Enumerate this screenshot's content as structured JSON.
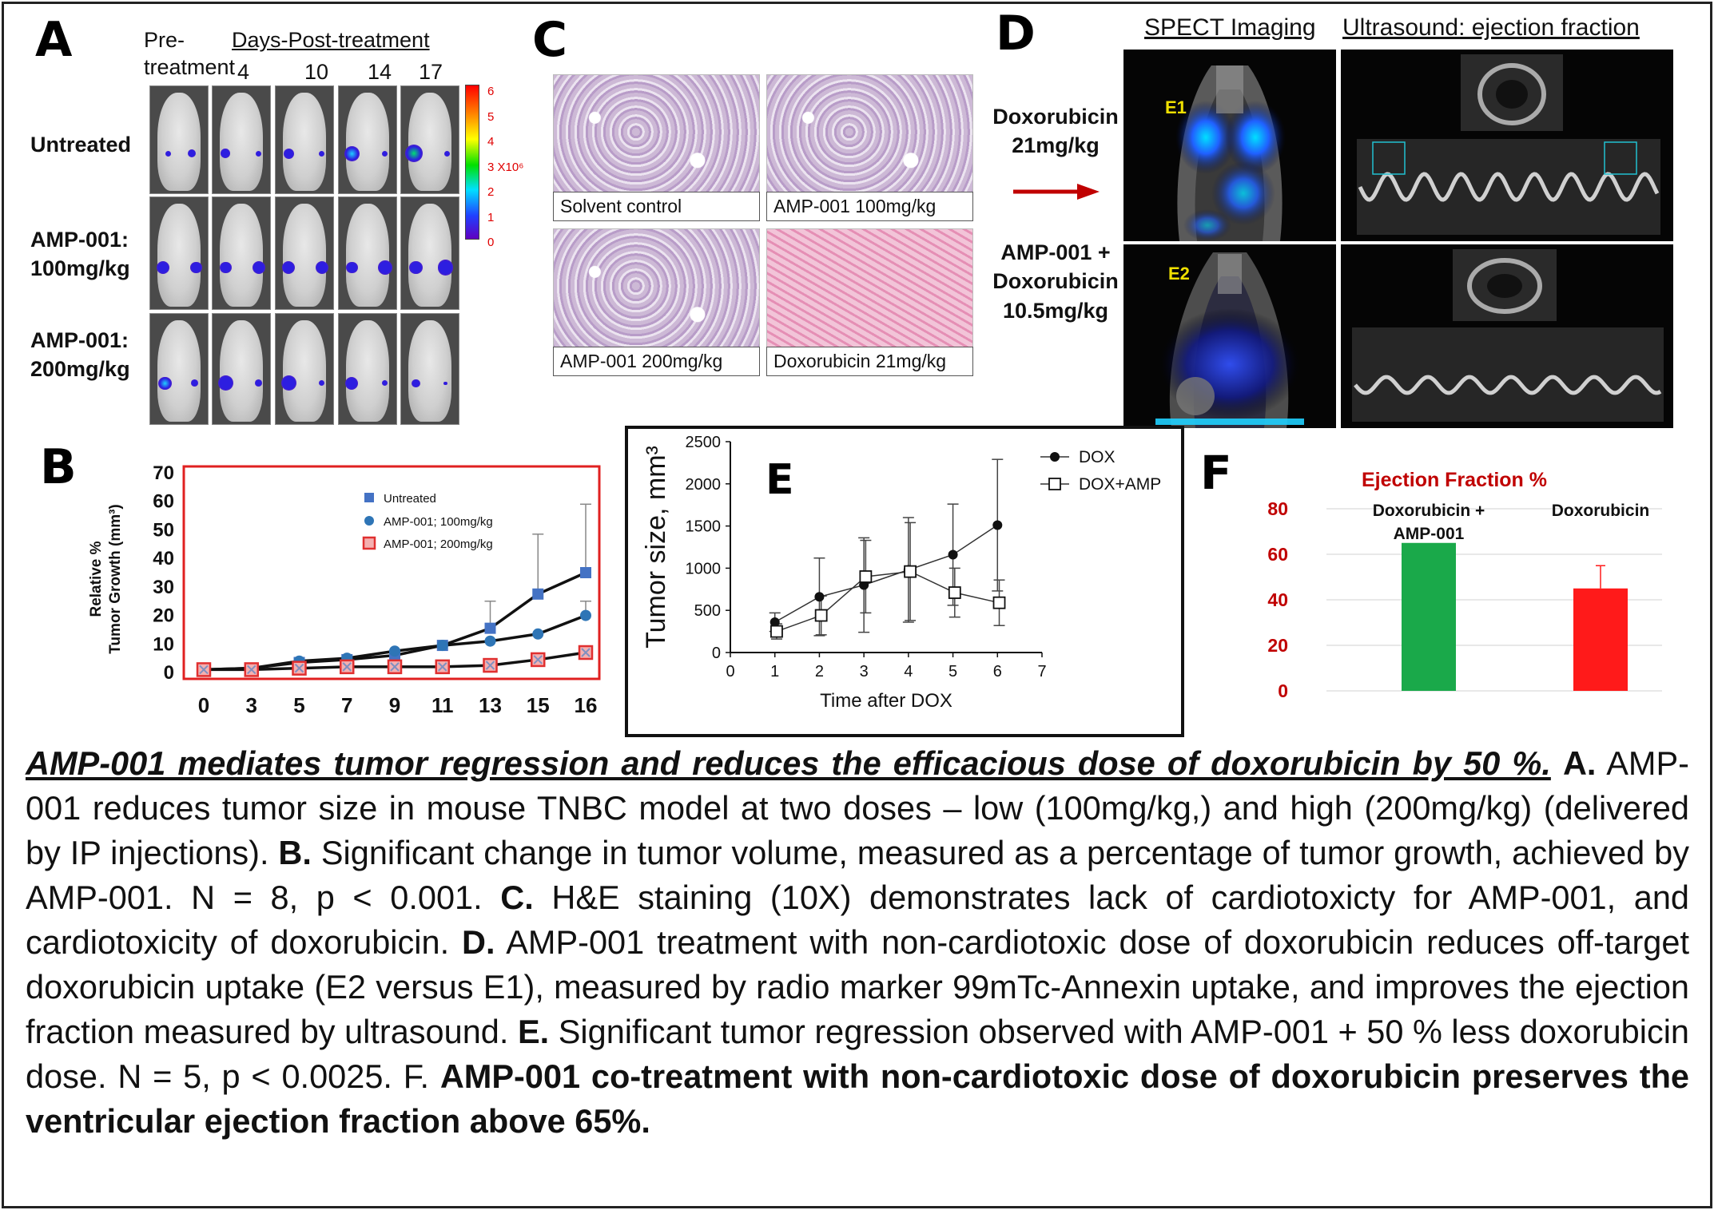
{
  "panels": {
    "A": {
      "letter": "A",
      "pre_label_1": "Pre-",
      "pre_label_2": "treatment",
      "days_header": "Days-Post-treatment",
      "days": [
        "4",
        "10",
        "14",
        "17"
      ],
      "rows": [
        {
          "label_1": "Untreated",
          "label_2": ""
        },
        {
          "label_1": "AMP-001:",
          "label_2": "100mg/kg"
        },
        {
          "label_1": "AMP-001:",
          "label_2": "200mg/kg"
        }
      ],
      "scale_ticks": [
        "6",
        "5",
        "4",
        "3 X10⁶",
        "2",
        "1",
        "0"
      ],
      "colors": {
        "signal_low": "#2d1ee0",
        "signal_mid": "#1fd0ff",
        "signal_high": "#00e070"
      }
    },
    "B": {
      "letter": "B",
      "legend_color_untreated": "#4472c4",
      "legend_color_100": "#2e75b6",
      "legend_color_200": "#e03030"
    },
    "C": {
      "letter": "C",
      "labels": [
        "Solvent control",
        "AMP-001 100mg/kg",
        "AMP-001 200mg/kg",
        "Doxorubicin 21mg/kg"
      ]
    },
    "D": {
      "letter": "D",
      "spect_header": "SPECT Imaging",
      "ultrasound_header": "Ultrasound: ejection fraction",
      "group1": [
        "Doxorubicin",
        "21mg/kg"
      ],
      "group2": [
        "AMP-001 +",
        "Doxorubicin",
        "10.5mg/kg"
      ],
      "tag1": "E1",
      "tag2": "E2",
      "arrow_color": "#c00000"
    },
    "E": {
      "letter": "E"
    },
    "F": {
      "letter": "F"
    }
  },
  "chart_data": [
    {
      "id": "B",
      "type": "line",
      "xlabel": "",
      "ylabel": "Relative % Tumor Growth (mm³)",
      "ylabel_lines": [
        "Relative %",
        "Tumor Growth (mm³)"
      ],
      "categories": [
        "0",
        "3",
        "5",
        "7",
        "9",
        "11",
        "13",
        "15",
        "16"
      ],
      "ylim": [
        0,
        70
      ],
      "yticks": [
        "0",
        "10",
        "20",
        "30",
        "40",
        "50",
        "60",
        "70"
      ],
      "legend_position": "top-right",
      "series": [
        {
          "name": "Untreated",
          "color": "#4472c4",
          "marker": "square",
          "values": [
            1,
            1.5,
            3.5,
            4.5,
            6,
            9.5,
            15.5,
            27.5,
            35
          ],
          "err_up": [
            0,
            0,
            0,
            0,
            0,
            0,
            9.5,
            21,
            24
          ]
        },
        {
          "name": "AMP-001; 100mg/kg",
          "color": "#2e75b6",
          "marker": "circle",
          "values": [
            1,
            1.5,
            4,
            5,
            7.5,
            9.5,
            11,
            13.5,
            20
          ],
          "err_up": [
            0,
            0,
            0,
            0,
            0,
            0,
            0,
            0,
            5
          ]
        },
        {
          "name": "AMP-001; 200mg/kg",
          "color": "#e03030",
          "marker": "x-square",
          "values": [
            1,
            1,
            1.5,
            2,
            2,
            2,
            2.5,
            4.5,
            7
          ],
          "err_up": [
            0,
            0,
            0,
            0,
            0,
            0,
            0,
            0,
            0
          ]
        }
      ]
    },
    {
      "id": "E",
      "type": "line",
      "xlabel": "Time after DOX",
      "ylabel": "Tumor size, mm³",
      "x": [
        1,
        2,
        3,
        4,
        5,
        6
      ],
      "xlim": [
        0,
        7
      ],
      "xticks": [
        "0",
        "1",
        "2",
        "3",
        "4",
        "5",
        "6",
        "7"
      ],
      "ylim": [
        0,
        2500
      ],
      "yticks": [
        "0",
        "500",
        "1000",
        "1500",
        "2000",
        "2500"
      ],
      "legend_position": "top-right",
      "series": [
        {
          "name": "DOX",
          "marker": "filled-circle",
          "values": [
            360,
            660,
            800,
            980,
            1160,
            1510
          ],
          "err": [
            110,
            460,
            560,
            620,
            600,
            780
          ]
        },
        {
          "name": "DOX+AMP",
          "marker": "open-square",
          "values": [
            250,
            440,
            900,
            960,
            710,
            590
          ],
          "err": [
            90,
            230,
            430,
            580,
            290,
            270
          ]
        }
      ]
    },
    {
      "id": "F",
      "type": "bar",
      "title": "Ejection Fraction %",
      "categories": [
        "Doxorubicin + AMP-001",
        "Doxorubicin"
      ],
      "category_lines": [
        [
          "Doxorubicin +",
          "AMP-001"
        ],
        [
          "Doxorubicin"
        ]
      ],
      "values": [
        65,
        45
      ],
      "err_up": [
        0,
        10
      ],
      "colors": [
        "#1aa94a",
        "#ff1a1a"
      ],
      "ylim": [
        0,
        80
      ],
      "yticks": [
        "0",
        "20",
        "40",
        "60",
        "80"
      ],
      "title_color": "#c00000",
      "tick_color": "#c00000"
    }
  ],
  "caption": {
    "title": "AMP-001 mediates tumor regression and reduces the efficacious dose of doxorubicin by 50 %.",
    "a_label": "A.",
    "a_text": "AMP-001 reduces tumor size in mouse TNBC model at two doses – low (100mg/kg,) and high (200mg/kg) (delivered by IP injections).",
    "b_label": "B.",
    "b_text": "Significant change in tumor volume, measured as a percentage of tumor growth, achieved by AMP-001. N = 8, p < 0.001.",
    "c_label": "C.",
    "c_text": "H&E staining (10X) demonstrates lack of cardiotoxicty for AMP-001, and cardiotoxicity of doxorubicin.",
    "d_label": "D.",
    "d_text": "AMP-001 treatment with non-cardiotoxic dose of doxorubicin reduces off-target doxorubicin uptake (E2 versus E1), measured by radio marker 99mTc-Annexin uptake, and improves the ejection fraction measured by ultrasound.",
    "e_label": "E.",
    "e_text": "Significant tumor regression observed with AMP-001 + 50 % less doxorubicin dose. N = 5, p < 0.0025. F.",
    "f_bold": "AMP-001 co-treatment with non-cardiotoxic dose of doxorubicin preserves the ventricular ejection fraction above 65%."
  }
}
